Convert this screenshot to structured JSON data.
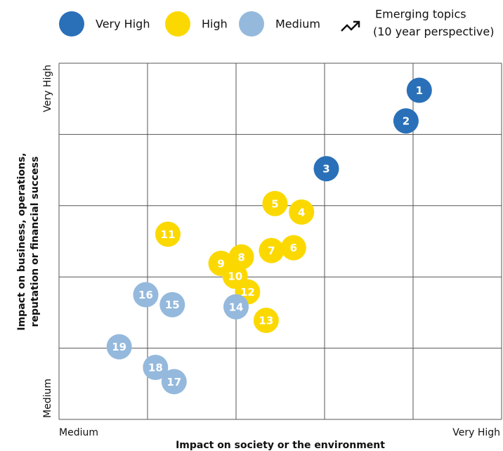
{
  "chart_data": {
    "type": "scatter",
    "xlabel": "Impact on society or the environment",
    "ylabel": [
      "Impact on business, operations,",
      "reputation or financial success"
    ],
    "xlim": [
      0,
      5
    ],
    "ylim": [
      0,
      5
    ],
    "xticks": [
      {
        "value": 0,
        "label": "Medium"
      },
      {
        "value": 5,
        "label": "Very High"
      }
    ],
    "yticks": [
      {
        "value": 0,
        "label": "Medium"
      },
      {
        "value": 5,
        "label": "Very High"
      }
    ],
    "xgrid": [
      0,
      1,
      2,
      3,
      4,
      5
    ],
    "ygrid": [
      0,
      1,
      2,
      3,
      4,
      5
    ],
    "legend_note": [
      "Emerging topics",
      "(10 year perspective)"
    ],
    "series": [
      {
        "name": "Very High",
        "color": "#2a70b8",
        "labels": [
          "1",
          "2",
          "3"
        ],
        "x": [
          4.07,
          3.92,
          3.02
        ],
        "values": [
          4.62,
          4.19,
          3.52
        ]
      },
      {
        "name": "High",
        "color": "#fbd900",
        "labels": [
          "4",
          "5",
          "6",
          "7",
          "8",
          "9",
          "10",
          "11",
          "12",
          "13"
        ],
        "x": [
          2.74,
          2.44,
          2.65,
          2.4,
          2.06,
          1.83,
          1.99,
          1.23,
          2.13,
          2.34
        ],
        "values": [
          2.91,
          3.03,
          2.41,
          2.37,
          2.28,
          2.19,
          2.01,
          2.6,
          1.79,
          1.39
        ]
      },
      {
        "name": "Medium",
        "color": "#94b9dd",
        "labels": [
          "14",
          "15",
          "16",
          "17",
          "18",
          "19"
        ],
        "x": [
          2.0,
          1.28,
          0.98,
          1.3,
          1.09,
          0.68
        ],
        "values": [
          1.58,
          1.61,
          1.75,
          0.53,
          0.73,
          1.02
        ]
      }
    ]
  }
}
